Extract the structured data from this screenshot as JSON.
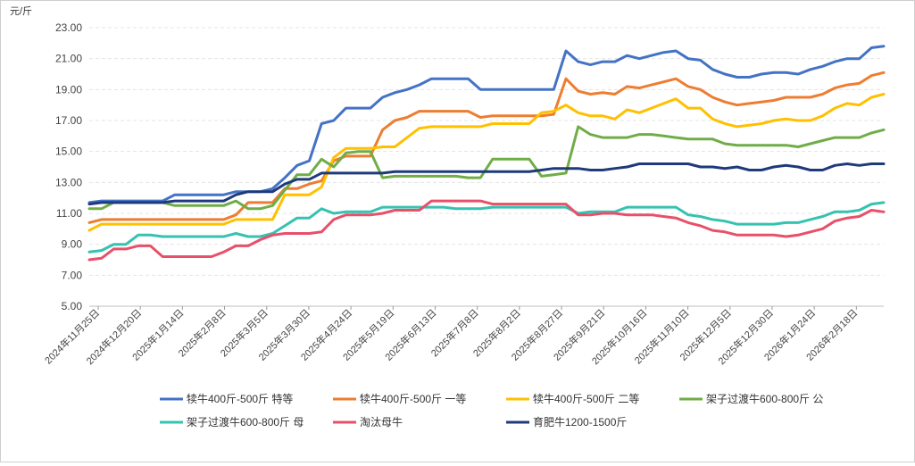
{
  "chart_data": {
    "type": "line",
    "title": "",
    "xlabel": "",
    "ylabel": "元/斤",
    "ylim": [
      5,
      23
    ],
    "yticks": [
      5.0,
      7.0,
      9.0,
      11.0,
      13.0,
      15.0,
      17.0,
      19.0,
      21.0,
      23.0
    ],
    "grid": true,
    "legend_position": "bottom",
    "x_tick_labels": [
      "2024年11月25日",
      "2024年12月20日",
      "2025年1月14日",
      "2025年2月8日",
      "2025年3月5日",
      "2025年3月30日",
      "2025年4月24日",
      "2025年5月19日",
      "2025年6月13日",
      "2025年7月8日",
      "2025年8月2日",
      "2025年8月27日",
      "2025年9月21日",
      "2025年10月16日",
      "2025年11月10日",
      "2025年12月5日",
      "2025年12月30日",
      "2026年1月24日",
      "2026年2月18日"
    ],
    "x_points": 66,
    "series": [
      {
        "name": "犊牛400斤-500斤 特等",
        "color": "#4472c4",
        "values": [
          11.7,
          11.8,
          11.8,
          11.8,
          11.8,
          11.8,
          11.8,
          12.2,
          12.2,
          12.2,
          12.2,
          12.2,
          12.4,
          12.4,
          12.4,
          12.6,
          13.3,
          14.1,
          14.4,
          16.8,
          17.0,
          17.8,
          17.8,
          17.8,
          18.5,
          18.8,
          19.0,
          19.3,
          19.7,
          19.7,
          19.7,
          19.7,
          19.0,
          19.0,
          19.0,
          19.0,
          19.0,
          19.0,
          19.0,
          21.5,
          20.8,
          20.6,
          20.8,
          20.8,
          21.2,
          21.0,
          21.2,
          21.4,
          21.5,
          21.0,
          20.9,
          20.3,
          20.0,
          19.8,
          19.8,
          20.0,
          20.1,
          20.1,
          20.0,
          20.3,
          20.5,
          20.8,
          21.0,
          21.0,
          21.7,
          21.8
        ]
      },
      {
        "name": "犊牛400斤-500斤 一等",
        "color": "#ed7d31",
        "values": [
          10.4,
          10.6,
          10.6,
          10.6,
          10.6,
          10.6,
          10.6,
          10.6,
          10.6,
          10.6,
          10.6,
          10.6,
          10.9,
          11.7,
          11.7,
          11.7,
          12.6,
          12.6,
          12.9,
          13.1,
          14.4,
          14.7,
          14.7,
          14.7,
          16.4,
          17.0,
          17.2,
          17.6,
          17.6,
          17.6,
          17.6,
          17.6,
          17.2,
          17.3,
          17.3,
          17.3,
          17.3,
          17.3,
          17.4,
          19.7,
          18.9,
          18.7,
          18.8,
          18.7,
          19.2,
          19.1,
          19.3,
          19.5,
          19.7,
          19.2,
          19.0,
          18.5,
          18.2,
          18.0,
          18.1,
          18.2,
          18.3,
          18.5,
          18.5,
          18.5,
          18.7,
          19.1,
          19.3,
          19.4,
          19.9,
          20.1
        ]
      },
      {
        "name": "犊牛400斤-500斤 二等",
        "color": "#ffc000",
        "values": [
          9.9,
          10.3,
          10.3,
          10.3,
          10.3,
          10.3,
          10.3,
          10.3,
          10.3,
          10.3,
          10.3,
          10.3,
          10.6,
          10.6,
          10.6,
          10.6,
          12.2,
          12.2,
          12.2,
          12.7,
          14.6,
          15.2,
          15.2,
          15.2,
          15.3,
          15.3,
          15.9,
          16.5,
          16.6,
          16.6,
          16.6,
          16.6,
          16.6,
          16.8,
          16.8,
          16.8,
          16.8,
          17.5,
          17.6,
          18.0,
          17.5,
          17.3,
          17.3,
          17.1,
          17.7,
          17.5,
          17.8,
          18.1,
          18.4,
          17.8,
          17.8,
          17.1,
          16.8,
          16.6,
          16.7,
          16.8,
          17.0,
          17.1,
          17.0,
          17.0,
          17.3,
          17.8,
          18.1,
          18.0,
          18.5,
          18.7
        ]
      },
      {
        "name": "架子过渡牛600-800斤 公",
        "color": "#70ad47",
        "values": [
          11.3,
          11.3,
          11.7,
          11.7,
          11.7,
          11.7,
          11.7,
          11.5,
          11.5,
          11.5,
          11.5,
          11.5,
          11.8,
          11.3,
          11.3,
          11.5,
          12.5,
          13.5,
          13.5,
          14.5,
          14.0,
          14.9,
          15.0,
          15.0,
          13.3,
          13.4,
          13.4,
          13.4,
          13.4,
          13.4,
          13.4,
          13.3,
          13.3,
          14.5,
          14.5,
          14.5,
          14.5,
          13.4,
          13.5,
          13.6,
          16.6,
          16.1,
          15.9,
          15.9,
          15.9,
          16.1,
          16.1,
          16.0,
          15.9,
          15.8,
          15.8,
          15.8,
          15.5,
          15.4,
          15.4,
          15.4,
          15.4,
          15.4,
          15.3,
          15.5,
          15.7,
          15.9,
          15.9,
          15.9,
          16.2,
          16.4
        ]
      },
      {
        "name": "架子过渡牛600-800斤 母",
        "color": "#36c2b0",
        "values": [
          8.5,
          8.6,
          9.0,
          9.0,
          9.6,
          9.6,
          9.5,
          9.5,
          9.5,
          9.5,
          9.5,
          9.5,
          9.7,
          9.5,
          9.5,
          9.7,
          10.2,
          10.7,
          10.7,
          11.3,
          11.0,
          11.1,
          11.1,
          11.1,
          11.4,
          11.4,
          11.4,
          11.4,
          11.4,
          11.4,
          11.3,
          11.3,
          11.3,
          11.4,
          11.4,
          11.4,
          11.4,
          11.4,
          11.4,
          11.4,
          11.0,
          11.1,
          11.1,
          11.1,
          11.4,
          11.4,
          11.4,
          11.4,
          11.4,
          10.9,
          10.8,
          10.6,
          10.5,
          10.3,
          10.3,
          10.3,
          10.3,
          10.4,
          10.4,
          10.6,
          10.8,
          11.1,
          11.1,
          11.2,
          11.6,
          11.7
        ]
      },
      {
        "name": "淘汰母牛",
        "color": "#e8506a",
        "values": [
          8.0,
          8.1,
          8.7,
          8.7,
          8.9,
          8.9,
          8.2,
          8.2,
          8.2,
          8.2,
          8.2,
          8.5,
          8.9,
          8.9,
          9.3,
          9.6,
          9.7,
          9.7,
          9.7,
          9.8,
          10.6,
          10.9,
          10.9,
          10.9,
          11.0,
          11.2,
          11.2,
          11.2,
          11.8,
          11.8,
          11.8,
          11.8,
          11.8,
          11.6,
          11.6,
          11.6,
          11.6,
          11.6,
          11.6,
          11.6,
          10.9,
          10.9,
          11.0,
          11.0,
          10.9,
          10.9,
          10.9,
          10.8,
          10.7,
          10.4,
          10.2,
          9.9,
          9.8,
          9.6,
          9.6,
          9.6,
          9.6,
          9.5,
          9.6,
          9.8,
          10.0,
          10.5,
          10.7,
          10.8,
          11.2,
          11.1
        ]
      },
      {
        "name": "育肥牛1200-1500斤",
        "color": "#1f3a7a",
        "values": [
          11.6,
          11.7,
          11.7,
          11.7,
          11.7,
          11.7,
          11.7,
          11.8,
          11.8,
          11.8,
          11.8,
          11.8,
          12.2,
          12.4,
          12.4,
          12.4,
          12.9,
          13.2,
          13.2,
          13.6,
          13.6,
          13.6,
          13.6,
          13.6,
          13.6,
          13.7,
          13.7,
          13.7,
          13.7,
          13.7,
          13.7,
          13.7,
          13.7,
          13.7,
          13.7,
          13.7,
          13.7,
          13.8,
          13.9,
          13.9,
          13.9,
          13.8,
          13.8,
          13.9,
          14.0,
          14.2,
          14.2,
          14.2,
          14.2,
          14.2,
          14.0,
          14.0,
          13.9,
          14.0,
          13.8,
          13.8,
          14.0,
          14.1,
          14.0,
          13.8,
          13.8,
          14.1,
          14.2,
          14.1,
          14.2,
          14.2
        ]
      }
    ]
  }
}
